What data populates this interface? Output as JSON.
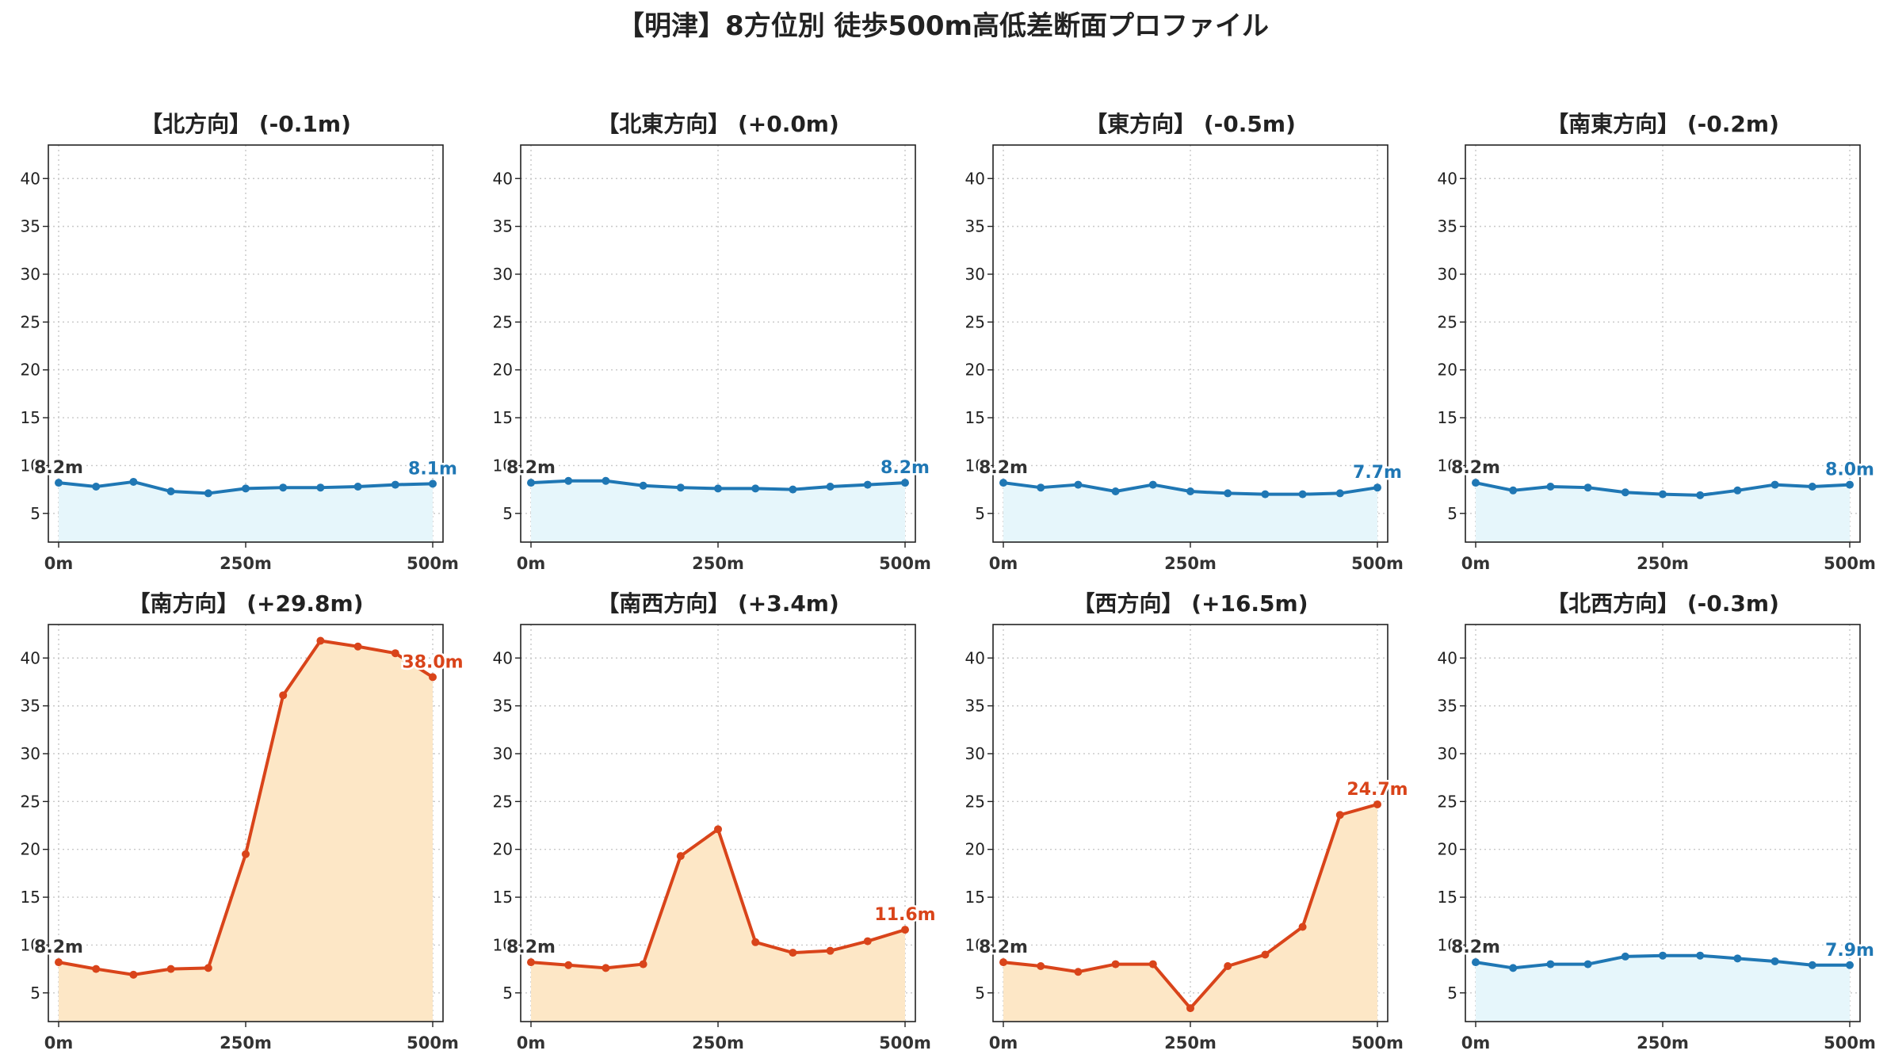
{
  "title": "【明津】8方位別 徒歩500m高低差断面プロファイル",
  "colors": {
    "flat_line": "#1f77b4",
    "flat_fill": "#e6f6fb",
    "rise_line": "#d9441a",
    "rise_fill": "#fde7c6",
    "start_label": "#333333"
  },
  "chart_data": [
    {
      "type": "area",
      "title": "【北方向】 (-0.1m)",
      "trend": "flat",
      "x": [
        0,
        50,
        100,
        150,
        200,
        250,
        300,
        350,
        400,
        450,
        500
      ],
      "y": [
        8.2,
        7.8,
        8.3,
        7.3,
        7.1,
        7.6,
        7.7,
        7.7,
        7.8,
        8.0,
        8.1
      ],
      "start_label": "8.2m",
      "end_label": "8.1m",
      "ylim": [
        2,
        43.5
      ],
      "yticks": [
        "5",
        "10",
        "15",
        "20",
        "25",
        "30",
        "35",
        "40"
      ],
      "xticks": [
        "0m",
        "250m",
        "500m"
      ],
      "grid": true
    },
    {
      "type": "area",
      "title": "【北東方向】 (+0.0m)",
      "trend": "flat",
      "x": [
        0,
        50,
        100,
        150,
        200,
        250,
        300,
        350,
        400,
        450,
        500
      ],
      "y": [
        8.2,
        8.4,
        8.4,
        7.9,
        7.7,
        7.6,
        7.6,
        7.5,
        7.8,
        8.0,
        8.2
      ],
      "start_label": "8.2m",
      "end_label": "8.2m",
      "ylim": [
        2,
        43.5
      ],
      "yticks": [
        "5",
        "10",
        "15",
        "20",
        "25",
        "30",
        "35",
        "40"
      ],
      "xticks": [
        "0m",
        "250m",
        "500m"
      ],
      "grid": true
    },
    {
      "type": "area",
      "title": "【東方向】 (-0.5m)",
      "trend": "flat",
      "x": [
        0,
        50,
        100,
        150,
        200,
        250,
        300,
        350,
        400,
        450,
        500
      ],
      "y": [
        8.2,
        7.7,
        8.0,
        7.3,
        8.0,
        7.3,
        7.1,
        7.0,
        7.0,
        7.1,
        7.7
      ],
      "start_label": "8.2m",
      "end_label": "7.7m",
      "ylim": [
        2,
        43.5
      ],
      "yticks": [
        "5",
        "10",
        "15",
        "20",
        "25",
        "30",
        "35",
        "40"
      ],
      "xticks": [
        "0m",
        "250m",
        "500m"
      ],
      "grid": true
    },
    {
      "type": "area",
      "title": "【南東方向】 (-0.2m)",
      "trend": "flat",
      "x": [
        0,
        50,
        100,
        150,
        200,
        250,
        300,
        350,
        400,
        450,
        500
      ],
      "y": [
        8.2,
        7.4,
        7.8,
        7.7,
        7.2,
        7.0,
        6.9,
        7.4,
        8.0,
        7.8,
        8.0
      ],
      "start_label": "8.2m",
      "end_label": "8.0m",
      "ylim": [
        2,
        43.5
      ],
      "yticks": [
        "5",
        "10",
        "15",
        "20",
        "25",
        "30",
        "35",
        "40"
      ],
      "xticks": [
        "0m",
        "250m",
        "500m"
      ],
      "grid": true
    },
    {
      "type": "area",
      "title": "【南方向】 (+29.8m)",
      "trend": "rise",
      "x": [
        0,
        50,
        100,
        150,
        200,
        250,
        300,
        350,
        400,
        450,
        500
      ],
      "y": [
        8.2,
        7.5,
        6.9,
        7.5,
        7.6,
        19.5,
        36.1,
        41.8,
        41.2,
        40.5,
        38.0
      ],
      "start_label": "8.2m",
      "end_label": "38.0m",
      "ylim": [
        2,
        43.5
      ],
      "yticks": [
        "5",
        "10",
        "15",
        "20",
        "25",
        "30",
        "35",
        "40"
      ],
      "xticks": [
        "0m",
        "250m",
        "500m"
      ],
      "grid": true
    },
    {
      "type": "area",
      "title": "【南西方向】 (+3.4m)",
      "trend": "rise",
      "x": [
        0,
        50,
        100,
        150,
        200,
        250,
        300,
        350,
        400,
        450,
        500
      ],
      "y": [
        8.2,
        7.9,
        7.6,
        8.0,
        19.3,
        22.1,
        10.3,
        9.2,
        9.4,
        10.4,
        11.6
      ],
      "start_label": "8.2m",
      "end_label": "11.6m",
      "ylim": [
        2,
        43.5
      ],
      "yticks": [
        "5",
        "10",
        "15",
        "20",
        "25",
        "30",
        "35",
        "40"
      ],
      "xticks": [
        "0m",
        "250m",
        "500m"
      ],
      "grid": true
    },
    {
      "type": "area",
      "title": "【西方向】 (+16.5m)",
      "trend": "rise",
      "x": [
        0,
        50,
        100,
        150,
        200,
        250,
        300,
        350,
        400,
        450,
        500
      ],
      "y": [
        8.2,
        7.8,
        7.2,
        8.0,
        8.0,
        3.4,
        7.8,
        9.0,
        11.9,
        23.6,
        24.7
      ],
      "start_label": "8.2m",
      "end_label": "24.7m",
      "ylim": [
        2,
        43.5
      ],
      "yticks": [
        "5",
        "10",
        "15",
        "20",
        "25",
        "30",
        "35",
        "40"
      ],
      "xticks": [
        "0m",
        "250m",
        "500m"
      ],
      "grid": true
    },
    {
      "type": "area",
      "title": "【北西方向】 (-0.3m)",
      "trend": "flat",
      "x": [
        0,
        50,
        100,
        150,
        200,
        250,
        300,
        350,
        400,
        450,
        500
      ],
      "y": [
        8.2,
        7.6,
        8.0,
        8.0,
        8.8,
        8.9,
        8.9,
        8.6,
        8.3,
        7.9,
        7.9
      ],
      "start_label": "8.2m",
      "end_label": "7.9m",
      "ylim": [
        2,
        43.5
      ],
      "yticks": [
        "5",
        "10",
        "15",
        "20",
        "25",
        "30",
        "35",
        "40"
      ],
      "xticks": [
        "0m",
        "250m",
        "500m"
      ],
      "grid": true
    }
  ]
}
